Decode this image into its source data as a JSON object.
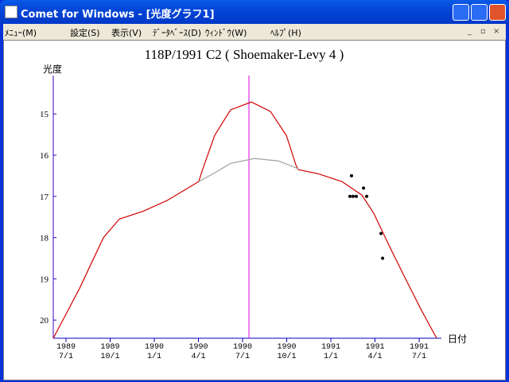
{
  "window": {
    "title": "Comet for Windows - [光度グラフ1]"
  },
  "menu": [
    "ﾒﾆｭｰ(M)",
    "設定(S)",
    "表示(V)",
    "ﾃﾞｰﾀﾍﾞｰｽ(D)",
    "ｳｨﾝﾄﾞｳ(W)",
    "ﾍﾙﾌﾟ(H)"
  ],
  "chart_data": {
    "type": "line",
    "title": "118P/1991 C2 ( Shoemaker-Levy 4 )",
    "y_label": "光度",
    "x_label": "日付",
    "xlim": [
      1989.428,
      1991.626
    ],
    "ylim": [
      14.07,
      20.44
    ],
    "y_inverted": true,
    "yticks": [
      15,
      16,
      17,
      18,
      19,
      20
    ],
    "xticks": [
      {
        "value": 1989.5,
        "label": "1989\n7/1"
      },
      {
        "value": 1989.75,
        "label": "1989\n10/1"
      },
      {
        "value": 1990.0,
        "label": "1990\n1/1"
      },
      {
        "value": 1990.25,
        "label": "1990\n4/1"
      },
      {
        "value": 1990.5,
        "label": "1990\n7/1"
      },
      {
        "value": 1990.75,
        "label": "1990\n10/1"
      },
      {
        "value": 1991.0,
        "label": "1991\n1/1"
      },
      {
        "value": 1991.25,
        "label": "1991\n4/1"
      },
      {
        "value": 1991.5,
        "label": "1991\n7/1"
      }
    ],
    "vline": {
      "x": 1990.536,
      "color": "#e000e0"
    },
    "series": [
      {
        "color": "#d00000",
        "marker": "line",
        "x": [
          1989.428,
          1989.577,
          1989.712,
          1989.802,
          1989.937,
          1990.072,
          1990.252,
          1990.27,
          1990.342,
          1990.432,
          1990.55,
          1990.658,
          1990.748,
          1990.802,
          1990.815,
          1990.928,
          1991.063,
          1991.176,
          1991.243,
          1991.333,
          1991.423,
          1991.514,
          1991.599
        ],
        "values": [
          20.44,
          19.23,
          18.0,
          17.55,
          17.36,
          17.1,
          16.64,
          16.39,
          15.52,
          14.9,
          14.71,
          14.94,
          15.52,
          16.24,
          16.35,
          16.45,
          16.64,
          16.97,
          17.41,
          18.22,
          19.0,
          19.77,
          20.44
        ]
      },
      {
        "color": "#a0a0a0",
        "marker": "line",
        "x": [
          1990.252,
          1990.342,
          1990.432,
          1990.568,
          1990.703,
          1990.815
        ],
        "values": [
          16.64,
          16.43,
          16.2,
          16.08,
          16.14,
          16.33
        ]
      },
      {
        "color": "#000000",
        "marker": "dot",
        "x": [
          1991.117,
          1991.108,
          1991.126,
          1991.144,
          1991.185,
          1991.203,
          1991.284,
          1991.293
        ],
        "values": [
          16.5,
          17.0,
          17.0,
          17.0,
          16.8,
          17.0,
          17.9,
          18.5
        ]
      }
    ]
  }
}
